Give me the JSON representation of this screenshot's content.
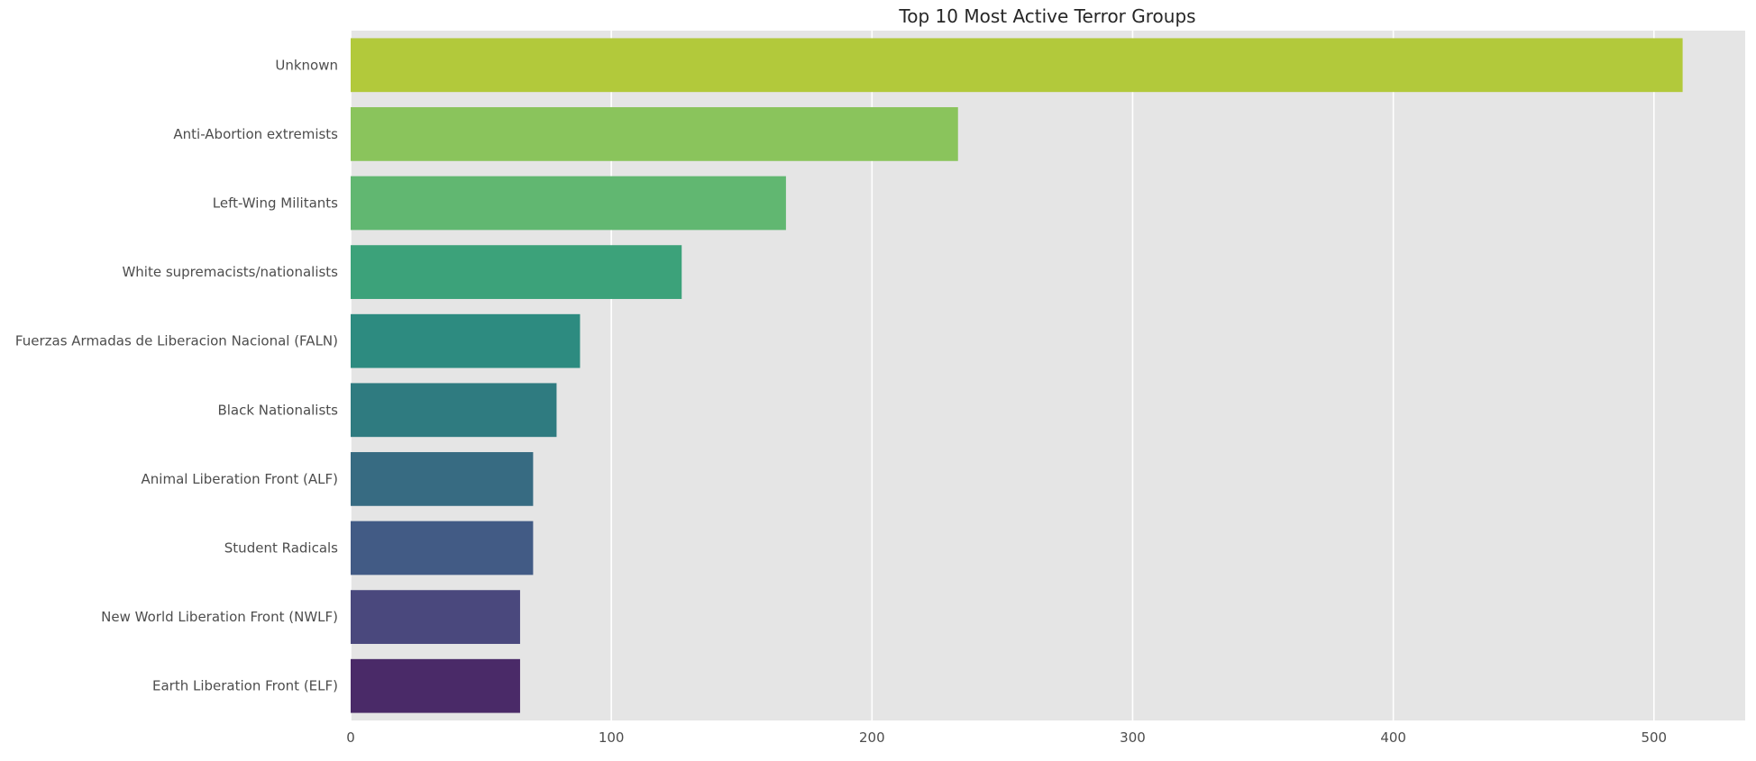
{
  "chart_data": {
    "type": "bar",
    "orientation": "horizontal",
    "title": "Top 10 Most Active Terror Groups",
    "xlabel": "",
    "ylabel": "",
    "categories": [
      "Unknown",
      "Anti-Abortion extremists",
      "Left-Wing Militants",
      "White supremacists/nationalists",
      "Fuerzas Armadas de Liberacion Nacional (FALN)",
      "Black Nationalists",
      "Animal Liberation Front (ALF)",
      "Student Radicals",
      "New World Liberation Front (NWLF)",
      "Earth Liberation Front (ELF)"
    ],
    "values": [
      511,
      233,
      167,
      127,
      88,
      79,
      70,
      70,
      65,
      65
    ],
    "colors": [
      "#b2c93b",
      "#8ac45c",
      "#61b771",
      "#3ca27a",
      "#2d8b80",
      "#2f7b80",
      "#376b82",
      "#425b85",
      "#4a487d",
      "#4a2a68"
    ],
    "xlim": [
      0,
      535
    ],
    "xticks": [
      0,
      100,
      200,
      300,
      400,
      500
    ],
    "grid": true
  }
}
